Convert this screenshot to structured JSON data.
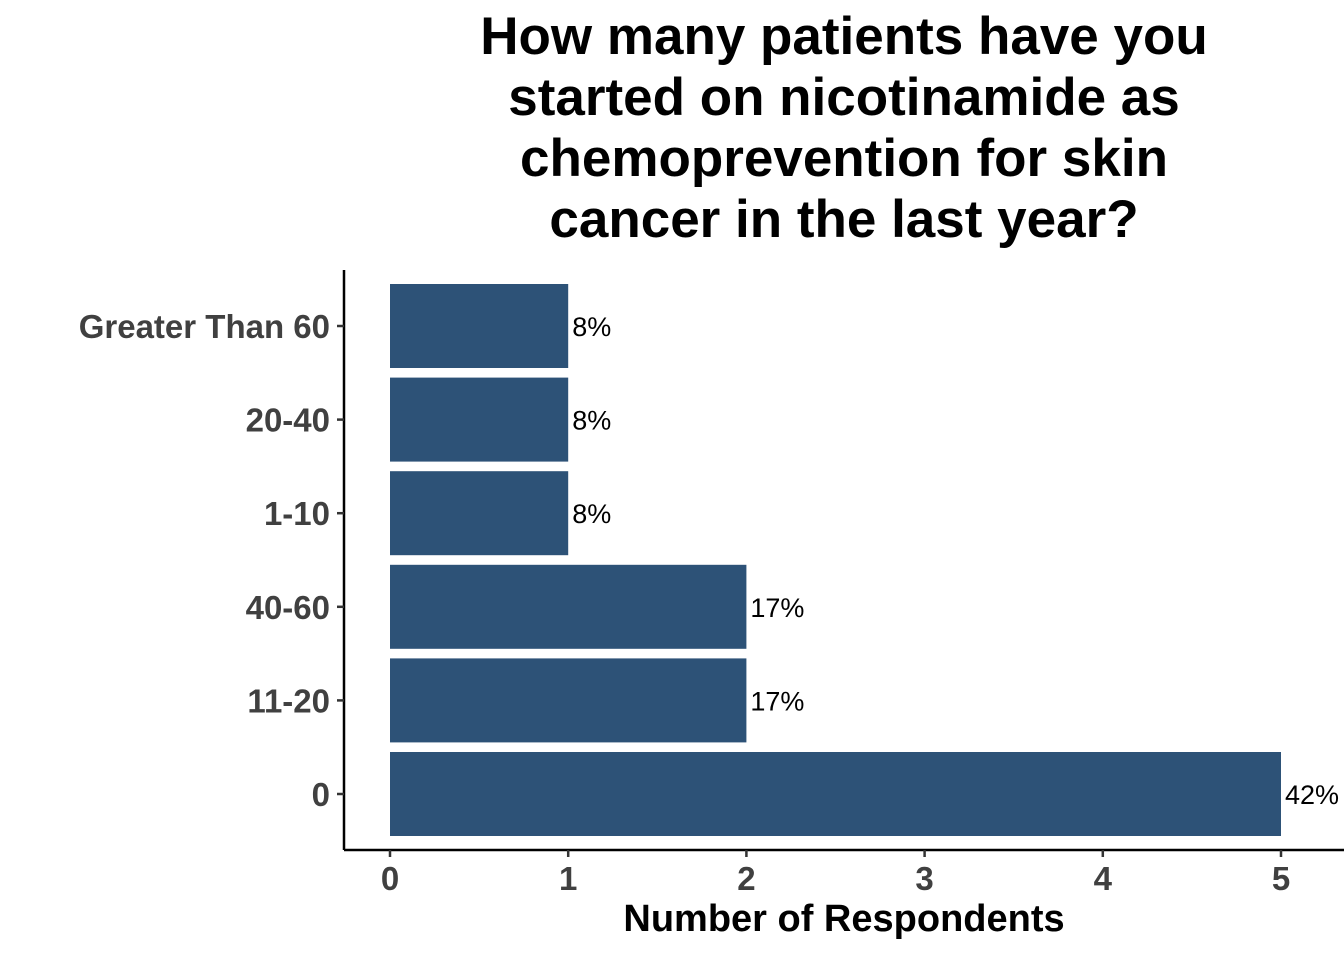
{
  "chart_data": {
    "type": "bar",
    "orientation": "horizontal",
    "title_lines": [
      "How many patients have you",
      "started on nicotinamide as",
      "chemoprevention for skin",
      "cancer in the last year?"
    ],
    "xlabel": "Number of Respondents",
    "ylabel": "",
    "categories": [
      "Greater Than 60",
      "20-40",
      "1-10",
      "40-60",
      "11-20",
      "0"
    ],
    "values": [
      1,
      1,
      1,
      2,
      2,
      5
    ],
    "labels": [
      "8%",
      "8%",
      "8%",
      "17%",
      "17%",
      "42%"
    ],
    "x_ticks": [
      "0",
      "1",
      "2",
      "3",
      "4",
      "5"
    ],
    "xlim": [
      -0.25,
      5.4
    ],
    "grid": false,
    "legend": "none",
    "bar_color": "#2d5277"
  }
}
